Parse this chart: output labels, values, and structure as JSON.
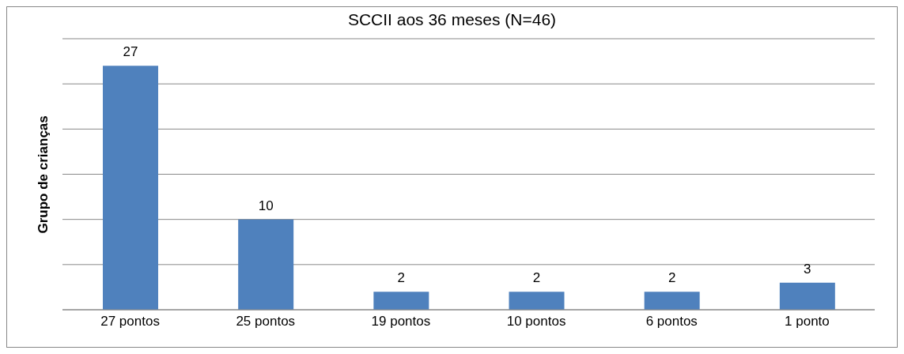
{
  "chart_data": {
    "type": "bar",
    "title": "SCCII aos 36 meses (N=46)",
    "ylabel": "Grupo de crianças",
    "categories": [
      "27 pontos",
      "25 pontos",
      "19 pontos",
      "10 pontos",
      "6 pontos",
      "1 ponto"
    ],
    "values": [
      27,
      10,
      2,
      2,
      2,
      3
    ],
    "color": "#4f81bd",
    "ylim": [
      0,
      30
    ],
    "yticks": [
      {
        "value": 0,
        "label": null
      },
      {
        "value": 5,
        "label": null
      },
      {
        "value": 10,
        "label": null
      },
      {
        "value": 15,
        "label": null
      },
      {
        "value": 20,
        "label": null
      },
      {
        "value": 25,
        "label": null
      },
      {
        "value": 30,
        "label": null
      }
    ],
    "tick_labels": "x",
    "grid": "y",
    "data_labels": true
  }
}
